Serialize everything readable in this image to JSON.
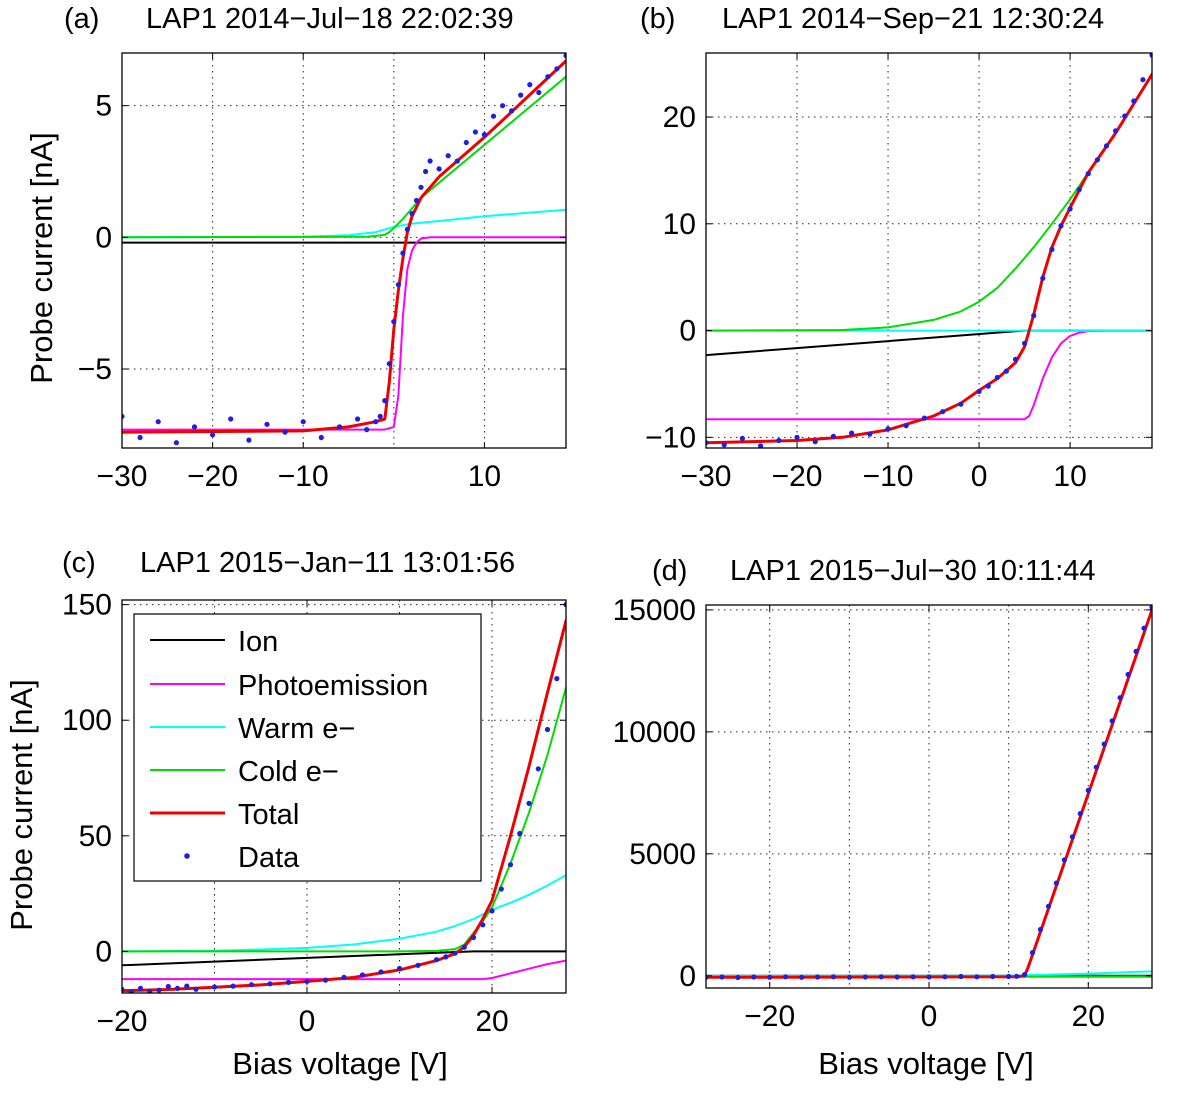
{
  "colors": {
    "ion": "#000000",
    "photoemission": "#ff00ff",
    "warm": "#00ffff",
    "cold": "#00dd00",
    "total": "#ee0000",
    "data": "#1e1ee6"
  },
  "legend": {
    "ion": "Ion",
    "photoemission": "Photoemission",
    "warm": "Warm e−",
    "cold": "Cold e−",
    "total": "Total",
    "data": "Data"
  },
  "chart_data": [
    {
      "id": "a",
      "type": "line",
      "label": "(a)",
      "title": "LAP1  2014−Jul−18  22:02:39",
      "xlabel": "",
      "ylabel": "Probe current [nA]",
      "xlim": [
        -30,
        19
      ],
      "ylim": [
        -8,
        7
      ],
      "xticks": [
        -30,
        -20,
        -10,
        10
      ],
      "xgrid": [
        -30,
        -20,
        -10,
        0,
        10
      ],
      "yticks": [
        -5,
        0,
        5
      ],
      "xtick_labels": [
        "−30",
        "−20",
        "−10",
        "10"
      ],
      "ytick_labels": [
        "−5",
        "0",
        "5"
      ],
      "series": [
        {
          "name": "Ion",
          "key": "ion",
          "x": [
            -30,
            19
          ],
          "y": [
            -0.2,
            -0.2
          ]
        },
        {
          "name": "Photoemission",
          "key": "photoemission",
          "x": [
            -30,
            -1,
            0,
            0.5,
            1,
            1.5,
            2,
            2.5,
            3,
            4,
            5,
            19
          ],
          "y": [
            -7.3,
            -7.3,
            -7.2,
            -6,
            -3,
            -1.2,
            -0.5,
            -0.2,
            -0.05,
            0,
            0,
            0
          ]
        },
        {
          "name": "Warm e−",
          "key": "warm",
          "x": [
            -30,
            -10,
            -5,
            -2,
            0,
            2,
            5,
            10,
            19
          ],
          "y": [
            0,
            0.02,
            0.08,
            0.2,
            0.4,
            0.52,
            0.62,
            0.8,
            1.05
          ]
        },
        {
          "name": "Cold e−",
          "key": "cold",
          "x": [
            -30,
            -3,
            -2,
            -1,
            -0.5,
            0,
            1,
            2,
            3,
            19
          ],
          "y": [
            0,
            0.02,
            0.05,
            0.1,
            0.2,
            0.35,
            0.7,
            1.1,
            1.5,
            6.1
          ]
        },
        {
          "name": "Total",
          "key": "total",
          "x": [
            -30,
            -10,
            -5,
            -2,
            -1,
            -0.5,
            0,
            0.5,
            1,
            1.5,
            2,
            3,
            5,
            10,
            19
          ],
          "y": [
            -7.4,
            -7.35,
            -7.2,
            -7,
            -6.9,
            -5.5,
            -3.5,
            -2,
            -0.8,
            0.2,
            0.8,
            1.5,
            2.3,
            3.8,
            6.7
          ]
        }
      ],
      "data": {
        "x": [
          -30,
          -28,
          -26,
          -24,
          -22,
          -20,
          -18,
          -16,
          -14,
          -12,
          -10,
          -8,
          -6,
          -4,
          -3,
          -2,
          -1.5,
          -1,
          -0.5,
          0,
          0.5,
          1,
          1.5,
          2,
          2.5,
          3,
          3.5,
          4,
          5,
          6,
          7,
          8,
          9,
          10,
          11,
          12,
          13,
          14,
          15,
          16,
          17,
          18,
          19
        ],
        "y": [
          -6.8,
          -7.6,
          -7.0,
          -7.8,
          -7.2,
          -7.5,
          -6.9,
          -7.7,
          -7.1,
          -7.4,
          -7.0,
          -7.6,
          -7.2,
          -6.9,
          -7.3,
          -7.0,
          -6.8,
          -6.2,
          -4.8,
          -3.2,
          -1.8,
          -0.6,
          0.3,
          0.9,
          1.4,
          1.9,
          2.5,
          2.9,
          2.6,
          3.1,
          2.9,
          3.6,
          4.0,
          3.9,
          4.6,
          5.0,
          4.8,
          5.4,
          5.8,
          5.5,
          6.1,
          6.4,
          6.9
        ]
      }
    },
    {
      "id": "b",
      "type": "line",
      "label": "(b)",
      "title": "LAP1  2014−Sep−21  12:30:24",
      "xlabel": "",
      "ylabel": "",
      "xlim": [
        -30,
        19
      ],
      "ylim": [
        -11,
        26
      ],
      "xticks": [
        -30,
        -20,
        -10,
        0,
        10
      ],
      "xgrid": [
        -30,
        -20,
        -10,
        0,
        10
      ],
      "yticks": [
        -10,
        0,
        10,
        20
      ],
      "xtick_labels": [
        "−30",
        "−20",
        "−10",
        "0",
        "10"
      ],
      "ytick_labels": [
        "−10",
        "0",
        "10",
        "20"
      ],
      "series": [
        {
          "name": "Ion",
          "key": "ion",
          "x": [
            -30,
            5,
            19
          ],
          "y": [
            -2.3,
            0,
            0
          ]
        },
        {
          "name": "Photoemission",
          "key": "photoemission",
          "x": [
            -30,
            5,
            5.5,
            6,
            7,
            8,
            9,
            10,
            11,
            12,
            14,
            19
          ],
          "y": [
            -8.3,
            -8.3,
            -8,
            -7,
            -4.5,
            -2.5,
            -1.2,
            -0.5,
            -0.2,
            -0.05,
            0,
            0
          ]
        },
        {
          "name": "Warm e−",
          "key": "warm",
          "x": [
            -30,
            19
          ],
          "y": [
            0,
            0
          ]
        },
        {
          "name": "Cold e−",
          "key": "cold",
          "x": [
            -30,
            -15,
            -10,
            -5,
            -2,
            0,
            2,
            4,
            6,
            8,
            10,
            12,
            15,
            19
          ],
          "y": [
            0,
            0.05,
            0.3,
            1,
            1.8,
            2.7,
            4,
            5.8,
            7.8,
            10,
            12.3,
            14.8,
            18.5,
            24
          ]
        },
        {
          "name": "Total",
          "key": "total",
          "x": [
            -30,
            -20,
            -15,
            -10,
            -5,
            -2,
            0,
            2,
            4,
            5,
            6,
            7,
            8,
            9,
            10,
            12,
            15,
            19
          ],
          "y": [
            -10.5,
            -10.3,
            -10,
            -9.3,
            -8,
            -6.8,
            -5.6,
            -4.5,
            -3,
            -1.5,
            1.5,
            5,
            7.8,
            9.8,
            11.5,
            14.8,
            18.5,
            24
          ]
        }
      ],
      "data": {
        "x": [
          -30,
          -28,
          -26,
          -24,
          -22,
          -20,
          -18,
          -16,
          -14,
          -12,
          -10,
          -8,
          -6,
          -4,
          -2,
          0,
          1,
          2,
          3,
          4,
          5,
          6,
          7,
          8,
          9,
          10,
          11,
          12,
          13,
          14,
          15,
          16,
          17,
          18,
          19
        ],
        "y": [
          -10.5,
          -10.7,
          -10.1,
          -10.8,
          -10.3,
          -10.0,
          -10.4,
          -9.9,
          -9.6,
          -9.7,
          -9.2,
          -8.9,
          -8.2,
          -7.6,
          -6.9,
          -5.7,
          -5.2,
          -4.4,
          -3.8,
          -2.7,
          -1.2,
          1.4,
          4.9,
          7.6,
          9.8,
          11.4,
          13.2,
          14.7,
          16.0,
          17.3,
          18.7,
          20.1,
          21.5,
          23.5,
          25.8
        ]
      }
    },
    {
      "id": "c",
      "type": "line",
      "label": "(c)",
      "title": "LAP1  2015−Jan−11  13:01:56",
      "xlabel": "Bias voltage [V]",
      "ylabel": "Probe current [nA]",
      "xlim": [
        -20,
        28
      ],
      "ylim": [
        -18,
        152
      ],
      "xticks": [
        -20,
        0,
        20
      ],
      "xgrid": [
        -10,
        0,
        10,
        20
      ],
      "yticks": [
        0,
        50,
        100,
        150
      ],
      "xtick_labels": [
        "−20",
        "0",
        "20"
      ],
      "ytick_labels": [
        "0",
        "50",
        "100",
        "150"
      ],
      "series": [
        {
          "name": "Ion",
          "key": "ion",
          "x": [
            -20,
            -10,
            0,
            10,
            18,
            20,
            28
          ],
          "y": [
            -6,
            -4.4,
            -2.8,
            -1.2,
            0,
            0,
            0
          ]
        },
        {
          "name": "Photoemission",
          "key": "photoemission",
          "x": [
            -20,
            19,
            20,
            22,
            24,
            26,
            28
          ],
          "y": [
            -12,
            -12,
            -11.5,
            -9.5,
            -7.5,
            -5.5,
            -4
          ]
        },
        {
          "name": "Warm e−",
          "key": "warm",
          "x": [
            -20,
            -10,
            -5,
            0,
            5,
            10,
            14,
            16,
            18,
            19,
            20,
            22,
            24,
            26,
            28
          ],
          "y": [
            0,
            0.3,
            0.8,
            1.5,
            3,
            5.5,
            8.5,
            11,
            14,
            16,
            18,
            21,
            24.5,
            28.5,
            33
          ]
        },
        {
          "name": "Cold e−",
          "key": "cold",
          "x": [
            -20,
            10,
            14,
            16,
            17,
            18,
            19,
            20,
            22,
            24,
            26,
            28
          ],
          "y": [
            0,
            0,
            0.2,
            1,
            3,
            8,
            13,
            19,
            38,
            60,
            85,
            114
          ]
        },
        {
          "name": "Total",
          "key": "total",
          "x": [
            -20,
            -15,
            -10,
            -5,
            0,
            5,
            10,
            14,
            16,
            17,
            18,
            19,
            20,
            22,
            24,
            26,
            28
          ],
          "y": [
            -17,
            -16.5,
            -15.5,
            -14.5,
            -13,
            -11.3,
            -8,
            -4,
            -1,
            2,
            7,
            14,
            22,
            50,
            80,
            112,
            143
          ]
        }
      ],
      "data": {
        "x": [
          -20,
          -19,
          -18,
          -17,
          -16,
          -15,
          -14,
          -13,
          -12,
          -10,
          -8,
          -6,
          -4,
          -2,
          0,
          2,
          4,
          6,
          8,
          10,
          12,
          14,
          15,
          16,
          17,
          18,
          19,
          20,
          21,
          22,
          23,
          24,
          25,
          26,
          27,
          28
        ],
        "y": [
          -16.5,
          -17.5,
          -16.0,
          -17.2,
          -16.8,
          -15.2,
          -16.0,
          -15.0,
          -16.4,
          -15.4,
          -15.0,
          -14.4,
          -14.0,
          -13.4,
          -13.0,
          -12.4,
          -11.2,
          -10.2,
          -8.9,
          -7.4,
          -6.0,
          -3.6,
          -2.4,
          -0.8,
          1.8,
          6.0,
          11.5,
          17.5,
          27.0,
          37.5,
          51.0,
          64.0,
          79.0,
          96.0,
          118.0,
          150.0
        ]
      }
    },
    {
      "id": "d",
      "type": "line",
      "label": "(d)",
      "title": "LAP1  2015−Jul−30  10:11:44",
      "xlabel": "Bias voltage [V]",
      "ylabel": "",
      "xlim": [
        -28,
        28
      ],
      "ylim": [
        -500,
        15200
      ],
      "xticks": [
        -20,
        0,
        20
      ],
      "xgrid": [
        -20,
        -10,
        0,
        10,
        20
      ],
      "yticks": [
        0,
        5000,
        10000,
        15000
      ],
      "xtick_labels": [
        "−20",
        "0",
        "20"
      ],
      "ytick_labels": [
        "0",
        "5000",
        "10000",
        "15000"
      ],
      "series": [
        {
          "name": "Ion",
          "key": "ion",
          "x": [
            -28,
            28
          ],
          "y": [
            0,
            0
          ]
        },
        {
          "name": "Photoemission",
          "key": "photoemission",
          "x": [
            -28,
            28
          ],
          "y": [
            -20,
            -20
          ]
        },
        {
          "name": "Warm e−",
          "key": "warm",
          "x": [
            -28,
            10,
            12,
            20,
            28
          ],
          "y": [
            0,
            0,
            20,
            90,
            180
          ]
        },
        {
          "name": "Cold e−",
          "key": "cold",
          "x": [
            -28,
            12,
            28
          ],
          "y": [
            -40,
            -40,
            -40
          ]
        },
        {
          "name": "Total",
          "key": "total",
          "x": [
            -28,
            11,
            12,
            12.5,
            28
          ],
          "y": [
            -60,
            -40,
            0,
            400,
            15000
          ]
        }
      ],
      "data": {
        "x": [
          -28,
          -26,
          -24,
          -22,
          -20,
          -18,
          -16,
          -14,
          -12,
          -10,
          -8,
          -6,
          -4,
          -2,
          0,
          2,
          4,
          6,
          8,
          10,
          11,
          12,
          13,
          14,
          15,
          16,
          17,
          18,
          19,
          20,
          21,
          22,
          23,
          24,
          25,
          26,
          27,
          28
        ],
        "y": [
          -60,
          -50,
          -70,
          -50,
          -60,
          -40,
          -60,
          -50,
          -40,
          -60,
          -50,
          -40,
          -50,
          -40,
          -50,
          -40,
          -30,
          -40,
          -30,
          -30,
          -20,
          50,
          950,
          1900,
          2850,
          3800,
          4750,
          5700,
          6650,
          7600,
          8550,
          9500,
          10450,
          11400,
          12350,
          13300,
          14250,
          15100
        ]
      }
    }
  ]
}
